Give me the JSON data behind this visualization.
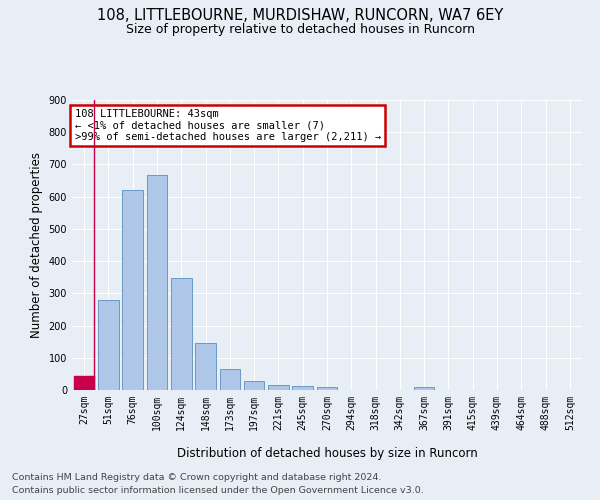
{
  "title1": "108, LITTLEBOURNE, MURDISHAW, RUNCORN, WA7 6EY",
  "title2": "Size of property relative to detached houses in Runcorn",
  "xlabel": "Distribution of detached houses by size in Runcorn",
  "ylabel": "Number of detached properties",
  "footnote1": "Contains HM Land Registry data © Crown copyright and database right 2024.",
  "footnote2": "Contains public sector information licensed under the Open Government Licence v3.0.",
  "annotation_line1": "108 LITTLEBOURNE: 43sqm",
  "annotation_line2": "← <1% of detached houses are smaller (7)",
  "annotation_line3": ">99% of semi-detached houses are larger (2,211) →",
  "bar_labels": [
    "27sqm",
    "51sqm",
    "76sqm",
    "100sqm",
    "124sqm",
    "148sqm",
    "173sqm",
    "197sqm",
    "221sqm",
    "245sqm",
    "270sqm",
    "294sqm",
    "318sqm",
    "342sqm",
    "367sqm",
    "391sqm",
    "415sqm",
    "439sqm",
    "464sqm",
    "488sqm",
    "512sqm"
  ],
  "bar_values": [
    42,
    278,
    622,
    668,
    348,
    145,
    65,
    28,
    17,
    12,
    8,
    0,
    0,
    0,
    10,
    0,
    0,
    0,
    0,
    0,
    0
  ],
  "bar_color": "#aec6e8",
  "bar_edge_color": "#5a8fc0",
  "highlight_bar_index": 0,
  "highlight_bar_color": "#c8004a",
  "highlight_bar_edge_color": "#c8004a",
  "annotation_box_edge_color": "#cc0000",
  "background_color": "#e8eef5",
  "ylim": [
    0,
    900
  ],
  "yticks": [
    0,
    100,
    200,
    300,
    400,
    500,
    600,
    700,
    800,
    900
  ],
  "grid_color": "#ffffff",
  "title1_fontsize": 10.5,
  "title2_fontsize": 9,
  "axis_fontsize": 8.5,
  "tick_fontsize": 7,
  "annotation_fontsize": 7.5,
  "footnote_fontsize": 6.8
}
